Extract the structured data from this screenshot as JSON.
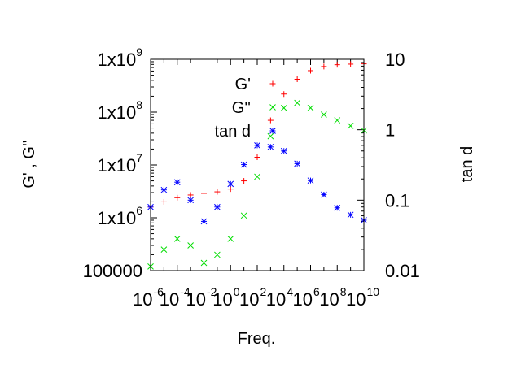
{
  "chart_data": {
    "type": "scatter",
    "xlabel": "Freq.",
    "ylabel": "G' , G''",
    "y2label": "tan d",
    "x_scale": "log",
    "y_scale": "log",
    "y2_scale": "log",
    "xlim": [
      1e-06,
      10000000000
    ],
    "ylim": [
      100000,
      1000000000
    ],
    "y2lim": [
      0.01,
      10
    ],
    "x_ticks": [
      {
        "base": "10",
        "exp": "-6"
      },
      {
        "base": "10",
        "exp": "-4"
      },
      {
        "base": "10",
        "exp": "-2"
      },
      {
        "base": "10",
        "exp": "0"
      },
      {
        "base": "10",
        "exp": "2"
      },
      {
        "base": "10",
        "exp": "4"
      },
      {
        "base": "10",
        "exp": "6"
      },
      {
        "base": "10",
        "exp": "8"
      },
      {
        "base": "10",
        "exp": "10"
      }
    ],
    "y_ticks": [
      {
        "base": "100000",
        "exp": ""
      },
      {
        "base": "1x10",
        "exp": "6"
      },
      {
        "base": "1x10",
        "exp": "7"
      },
      {
        "base": "1x10",
        "exp": "8"
      },
      {
        "base": "1x10",
        "exp": "9"
      }
    ],
    "y2_ticks": [
      "0.01",
      "0.1",
      "1",
      "10"
    ],
    "grid": false,
    "legend_position": "top-inside",
    "series": [
      {
        "name": "G'",
        "axis": "left",
        "marker": "+",
        "color": "#ff0000",
        "x": [
          1e-06,
          1e-05,
          0.0001,
          0.001,
          0.01,
          0.1,
          1,
          10,
          100,
          1000,
          10000,
          100000,
          1000000,
          10000000,
          100000000,
          1000000000,
          10000000000
        ],
        "y": [
          1600000,
          2000000,
          2400000,
          2700000,
          2900000,
          3100000,
          3500000,
          5000000,
          14000000,
          70000000,
          220000000,
          420000000,
          610000000,
          730000000,
          790000000,
          810000000,
          820000000
        ]
      },
      {
        "name": "G''",
        "axis": "left",
        "marker": "x",
        "color": "#00dd00",
        "x": [
          1e-06,
          1e-05,
          0.0001,
          0.001,
          0.01,
          0.1,
          1,
          10,
          100,
          1000,
          10000,
          100000,
          1000000,
          10000000,
          100000000,
          1000000000,
          10000000000
        ],
        "y": [
          120000,
          250000,
          400000,
          300000,
          140000,
          200000,
          400000,
          1100000,
          6000000,
          35000000,
          120000000,
          150000000,
          120000000,
          90000000,
          70000000,
          55000000,
          45000000
        ]
      },
      {
        "name": "tan d",
        "axis": "right",
        "marker": "*",
        "color": "#0000ff",
        "x": [
          1e-06,
          1e-05,
          0.0001,
          0.001,
          0.01,
          0.1,
          1,
          10,
          100,
          1000,
          10000,
          100000,
          1000000,
          10000000,
          100000000,
          1000000000,
          10000000000
        ],
        "y": [
          0.08,
          0.14,
          0.18,
          0.1,
          0.05,
          0.08,
          0.17,
          0.32,
          0.6,
          0.57,
          0.5,
          0.33,
          0.19,
          0.12,
          0.078,
          0.062,
          0.052
        ]
      }
    ]
  }
}
